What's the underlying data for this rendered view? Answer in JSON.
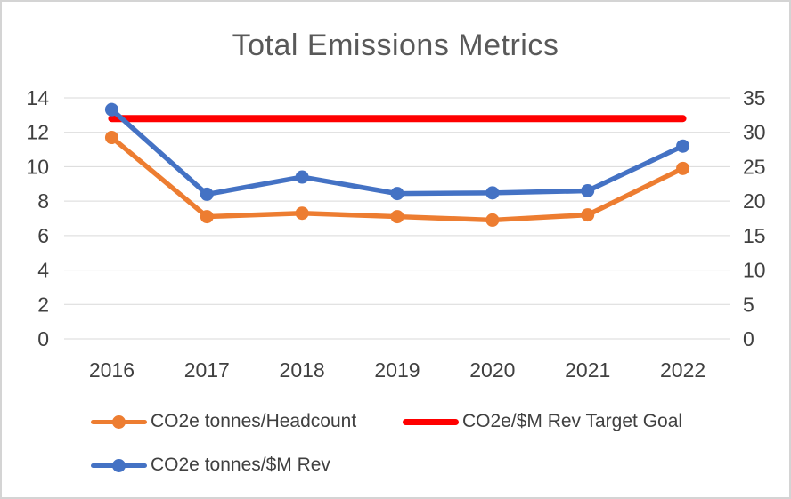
{
  "chart_data": {
    "type": "line",
    "title": "Total Emissions Metrics",
    "categories": [
      "2016",
      "2017",
      "2018",
      "2019",
      "2020",
      "2021",
      "2022"
    ],
    "series": [
      {
        "id": "co2e-tonnes-headcount",
        "name": "CO2e tonnes/Headcount",
        "axis": "left",
        "color": "#ED7D31",
        "marker": "circle",
        "line_width": 5.5,
        "values": [
          11.7,
          7.1,
          7.3,
          7.1,
          6.9,
          7.2,
          9.9
        ]
      },
      {
        "id": "co2e-rev-target-goal",
        "name": "CO2e/$M Rev Target Goal",
        "axis": "right",
        "color": "#FF0000",
        "marker": "none",
        "line_width": 8,
        "values": [
          32,
          32,
          32,
          32,
          32,
          32,
          32
        ]
      },
      {
        "id": "co2e-tonnes-rev",
        "name": "CO2e tonnes/$M Rev",
        "axis": "right",
        "color": "#4472C4",
        "marker": "circle",
        "line_width": 5.5,
        "values": [
          33.3,
          21.0,
          23.5,
          21.1,
          21.2,
          21.5,
          28.0
        ]
      }
    ],
    "left_axis": {
      "min": 0,
      "max": 14,
      "step": 2,
      "ticks": [
        0,
        2,
        4,
        6,
        8,
        10,
        12,
        14
      ]
    },
    "right_axis": {
      "min": 0,
      "max": 35,
      "step": 5,
      "ticks": [
        0,
        5,
        10,
        15,
        20,
        25,
        30,
        35
      ]
    },
    "grid": true,
    "legend_position": "bottom"
  },
  "styles": {
    "title_color": "#595959",
    "axis_text_color": "#404040",
    "legend_text_color": "#404040",
    "gridline_color": "#D9D9D9",
    "background": "#FFFFFF",
    "border_color": "#D4D4D4"
  }
}
